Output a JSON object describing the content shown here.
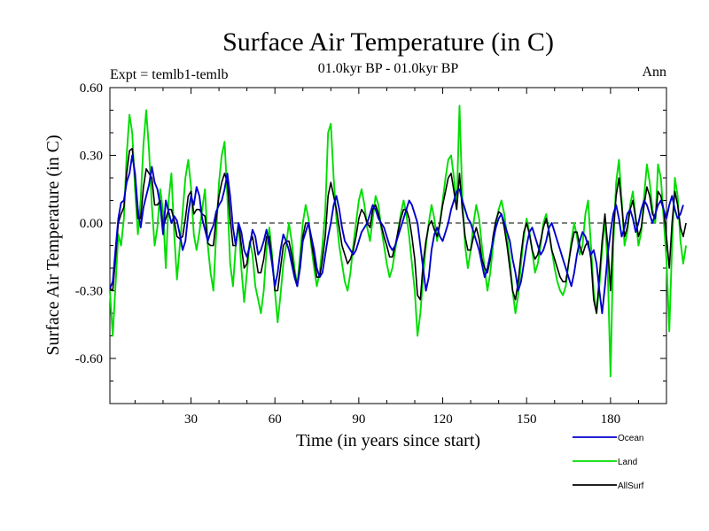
{
  "chart_data": {
    "type": "line",
    "title": "Surface Air Temperature (in C)",
    "subtitle": "01.0kyr BP - 01.0kyr BP",
    "left_label": "Expt = temlb1-temlb",
    "right_label": "Ann",
    "xlabel": "Time (in years since start)",
    "ylabel": "Surface Air Temperature (in C)",
    "xlim": [
      1,
      200
    ],
    "ylim": [
      -0.8,
      0.6
    ],
    "xticks": [
      30,
      60,
      90,
      120,
      150,
      180
    ],
    "xtick_labels": [
      "30",
      "60",
      "90",
      "120",
      "150",
      "180"
    ],
    "yticks": [
      0.6,
      0.3,
      0.0,
      -0.3,
      -0.6
    ],
    "ytick_labels": [
      "0.60",
      "0.30",
      "0.00",
      "-0.30",
      "-0.60"
    ],
    "zero_line": "dashed",
    "legend_position": "bottom-right",
    "series": [
      {
        "name": "Ocean",
        "color": "#0000cc",
        "values": [
          -0.29,
          -0.26,
          -0.12,
          0.02,
          0.09,
          0.1,
          0.18,
          0.22,
          0.3,
          0.22,
          0.06,
          -0.02,
          0.07,
          0.12,
          0.17,
          0.25,
          0.18,
          0.15,
          0.08,
          -0.05,
          0.1,
          0.05,
          0.0,
          0.03,
          0.01,
          -0.05,
          -0.12,
          -0.08,
          0.04,
          0.12,
          0.08,
          0.16,
          0.12,
          0.02,
          -0.03,
          -0.08,
          -0.04,
          -0.01,
          0.05,
          0.08,
          0.1,
          0.15,
          0.22,
          0.12,
          -0.02,
          -0.1,
          0.0,
          -0.04,
          -0.12,
          -0.15,
          -0.1,
          -0.03,
          -0.06,
          -0.14,
          -0.12,
          -0.08,
          -0.03,
          -0.1,
          -0.18,
          -0.28,
          -0.22,
          -0.12,
          -0.05,
          -0.08,
          -0.12,
          -0.18,
          -0.24,
          -0.28,
          -0.2,
          -0.08,
          -0.04,
          0.0,
          -0.06,
          -0.12,
          -0.2,
          -0.24,
          -0.22,
          -0.14,
          -0.06,
          0.0,
          0.08,
          0.12,
          0.06,
          -0.02,
          -0.08,
          -0.1,
          -0.12,
          -0.14,
          -0.12,
          -0.08,
          -0.04,
          -0.02,
          0.0,
          0.04,
          0.08,
          0.06,
          0.02,
          0.0,
          -0.02,
          -0.06,
          -0.1,
          -0.12,
          -0.1,
          -0.06,
          -0.02,
          0.02,
          0.06,
          0.1,
          0.08,
          0.04,
          0.0,
          -0.1,
          -0.2,
          -0.3,
          -0.24,
          -0.12,
          -0.05,
          -0.02,
          -0.06,
          -0.08,
          -0.04,
          0.0,
          0.06,
          0.1,
          0.14,
          0.15,
          0.1,
          0.06,
          0.02,
          0.0,
          -0.04,
          -0.08,
          -0.12,
          -0.18,
          -0.24,
          -0.2,
          -0.14,
          -0.08,
          -0.02,
          0.02,
          0.04,
          0.0,
          -0.04,
          -0.08,
          -0.16,
          -0.22,
          -0.3,
          -0.26,
          -0.18,
          -0.1,
          -0.04,
          -0.02,
          -0.06,
          -0.1,
          -0.14,
          -0.12,
          -0.08,
          -0.02,
          0.0,
          -0.04,
          -0.08,
          -0.12,
          -0.16,
          -0.2,
          -0.24,
          -0.28,
          -0.22,
          -0.14,
          -0.08,
          -0.04,
          -0.06,
          -0.1,
          -0.14,
          -0.12,
          -0.18,
          -0.3,
          -0.4,
          -0.28,
          -0.14,
          -0.04,
          0.04,
          0.08,
          0.02,
          -0.06,
          -0.02,
          0.04,
          0.06,
          0.02,
          -0.04,
          0.0,
          0.06,
          0.1,
          0.08,
          0.04,
          0.0,
          0.04,
          0.08,
          0.1,
          0.06,
          0.02,
          0.08,
          0.12,
          0.06,
          0.02,
          0.04,
          0.08
        ]
      },
      {
        "name": "Land",
        "color": "#00dd00",
        "values": [
          -0.3,
          -0.5,
          -0.28,
          -0.05,
          -0.1,
          0.02,
          0.3,
          0.48,
          0.4,
          0.15,
          -0.05,
          0.1,
          0.35,
          0.5,
          0.32,
          0.08,
          -0.1,
          -0.02,
          0.15,
          0.05,
          -0.2,
          0.1,
          0.22,
          -0.05,
          -0.25,
          -0.1,
          0.05,
          0.2,
          0.28,
          0.16,
          -0.05,
          -0.12,
          -0.04,
          0.06,
          0.15,
          -0.1,
          -0.22,
          -0.3,
          -0.05,
          0.18,
          0.3,
          0.36,
          0.12,
          -0.18,
          -0.28,
          -0.1,
          0.0,
          -0.2,
          -0.35,
          -0.22,
          -0.08,
          -0.14,
          -0.28,
          -0.34,
          -0.4,
          -0.3,
          -0.12,
          -0.02,
          -0.14,
          -0.3,
          -0.44,
          -0.32,
          -0.18,
          -0.1,
          0.0,
          -0.08,
          -0.2,
          -0.28,
          -0.14,
          0.0,
          0.08,
          0.02,
          -0.1,
          -0.2,
          -0.28,
          -0.22,
          -0.1,
          0.05,
          0.4,
          0.44,
          0.2,
          0.02,
          -0.1,
          -0.18,
          -0.26,
          -0.3,
          -0.22,
          -0.1,
          0.0,
          0.1,
          0.15,
          0.08,
          -0.02,
          -0.08,
          0.02,
          0.12,
          0.08,
          -0.02,
          -0.1,
          -0.18,
          -0.24,
          -0.2,
          -0.12,
          -0.04,
          0.04,
          0.1,
          0.04,
          -0.06,
          -0.18,
          -0.3,
          -0.5,
          -0.4,
          -0.24,
          -0.1,
          0.0,
          0.08,
          0.02,
          -0.08,
          0.0,
          0.1,
          0.2,
          0.28,
          0.3,
          0.2,
          0.08,
          0.52,
          0.12,
          -0.1,
          -0.2,
          -0.12,
          0.0,
          0.08,
          0.02,
          -0.1,
          -0.2,
          -0.3,
          -0.22,
          -0.1,
          0.0,
          0.06,
          0.1,
          0.04,
          -0.06,
          -0.16,
          -0.3,
          -0.4,
          -0.32,
          -0.18,
          -0.06,
          0.02,
          -0.04,
          -0.12,
          -0.22,
          -0.18,
          -0.1,
          0.0,
          0.04,
          -0.04,
          -0.12,
          -0.2,
          -0.26,
          -0.3,
          -0.32,
          -0.28,
          -0.18,
          -0.08,
          0.0,
          -0.06,
          -0.14,
          -0.1,
          0.04,
          0.1,
          -0.1,
          -0.3,
          -0.4,
          -0.28,
          -0.12,
          0.02,
          -0.2,
          -0.68,
          -0.1,
          0.18,
          0.28,
          0.1,
          -0.1,
          -0.04,
          0.08,
          0.14,
          0.02,
          -0.1,
          -0.04,
          0.12,
          0.26,
          0.18,
          0.06,
          0.0,
          0.26,
          0.2,
          0.02,
          -0.16,
          -0.48,
          -0.1,
          0.2,
          0.12,
          -0.08,
          -0.18,
          -0.1
        ]
      },
      {
        "name": "AllSurf",
        "color": "#000000",
        "values": [
          -0.29,
          -0.3,
          -0.16,
          0.0,
          0.04,
          0.07,
          0.22,
          0.32,
          0.33,
          0.2,
          0.02,
          0.02,
          0.16,
          0.24,
          0.22,
          0.2,
          0.08,
          0.08,
          0.1,
          -0.02,
          0.02,
          0.06,
          0.06,
          0.01,
          -0.06,
          -0.07,
          -0.06,
          0.02,
          0.12,
          0.14,
          0.04,
          0.06,
          0.06,
          0.04,
          0.03,
          -0.09,
          -0.1,
          -0.1,
          0.02,
          0.12,
          0.18,
          0.22,
          0.18,
          0.02,
          -0.1,
          -0.1,
          0.0,
          -0.1,
          -0.2,
          -0.18,
          -0.09,
          -0.06,
          -0.14,
          -0.22,
          -0.22,
          -0.16,
          -0.06,
          -0.06,
          -0.16,
          -0.3,
          -0.3,
          -0.2,
          -0.1,
          -0.08,
          -0.08,
          -0.14,
          -0.22,
          -0.28,
          -0.18,
          -0.06,
          0.0,
          0.0,
          -0.08,
          -0.16,
          -0.24,
          -0.24,
          -0.16,
          -0.06,
          0.12,
          0.18,
          0.12,
          0.06,
          -0.02,
          -0.1,
          -0.14,
          -0.18,
          -0.16,
          -0.12,
          -0.06,
          0.02,
          0.06,
          0.04,
          0.0,
          -0.02,
          0.06,
          0.08,
          0.04,
          -0.01,
          -0.06,
          -0.1,
          -0.15,
          -0.15,
          -0.1,
          -0.04,
          0.02,
          0.06,
          0.06,
          0.02,
          -0.06,
          -0.16,
          -0.32,
          -0.34,
          -0.18,
          -0.08,
          -0.01,
          0.01,
          -0.03,
          -0.06,
          0.0,
          0.08,
          0.14,
          0.2,
          0.22,
          0.14,
          0.06,
          0.22,
          0.06,
          -0.06,
          -0.12,
          -0.12,
          -0.06,
          -0.02,
          -0.07,
          -0.16,
          -0.2,
          -0.22,
          -0.16,
          -0.06,
          0.01,
          0.05,
          0.04,
          -0.02,
          -0.1,
          -0.2,
          -0.3,
          -0.34,
          -0.26,
          -0.14,
          -0.04,
          0.0,
          -0.05,
          -0.12,
          -0.16,
          -0.14,
          -0.08,
          -0.02,
          0.02,
          -0.04,
          -0.12,
          -0.16,
          -0.2,
          -0.24,
          -0.26,
          -0.26,
          -0.18,
          -0.1,
          -0.04,
          -0.04,
          -0.1,
          -0.14,
          -0.1,
          -0.08,
          -0.16,
          -0.34,
          -0.4,
          -0.24,
          -0.08,
          0.04,
          -0.1,
          -0.3,
          -0.04,
          0.12,
          0.2,
          0.08,
          -0.06,
          -0.02,
          0.06,
          0.1,
          0.02,
          -0.06,
          -0.02,
          0.08,
          0.16,
          0.12,
          0.04,
          0.02,
          0.14,
          0.12,
          0.06,
          -0.06,
          -0.2,
          0.0,
          0.14,
          0.08,
          -0.02,
          -0.06,
          0.0
        ]
      }
    ]
  }
}
